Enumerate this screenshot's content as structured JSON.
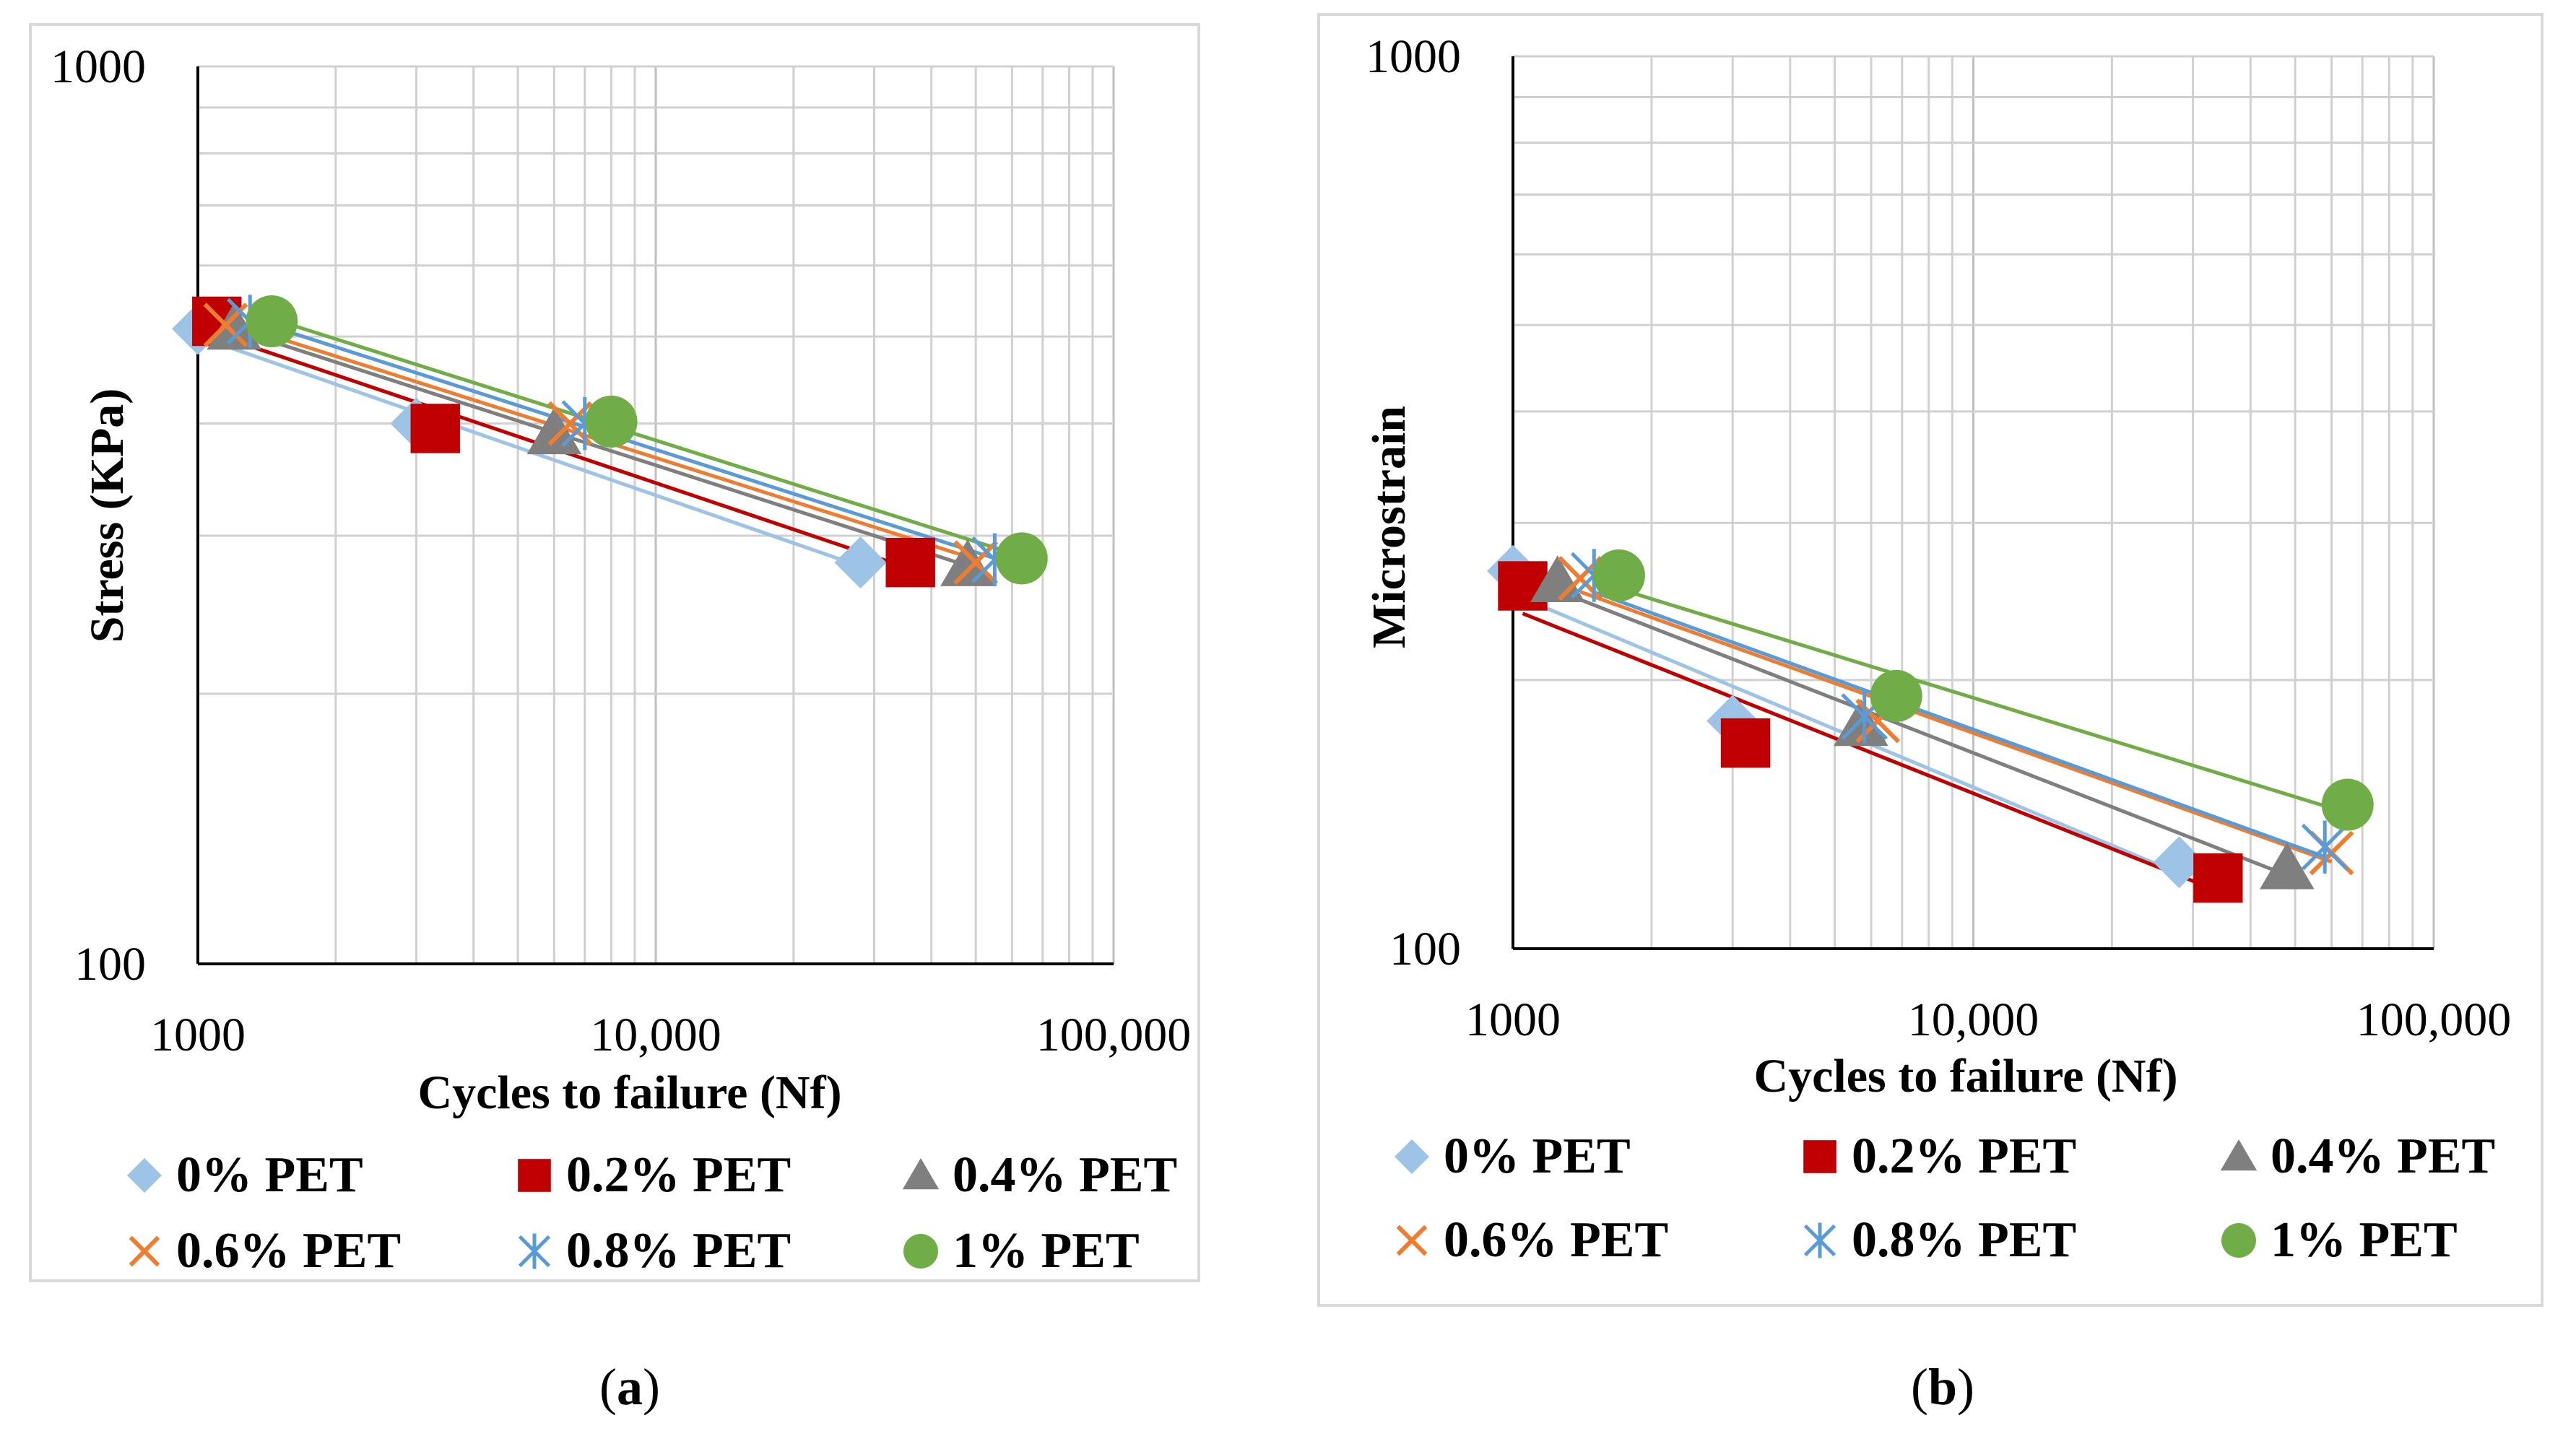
{
  "figure": {
    "series_colors": {
      "0% PET": "#9dc3e6",
      "0.2% PET": "#c00000",
      "0.4% PET": "#7f7f7f",
      "0.6% PET": "#ed7d31",
      "0.8% PET": "#5b9bd5",
      "1% PET": "#70ad47"
    },
    "marker_shapes": {
      "0% PET": "diamond",
      "0.2% PET": "square",
      "0.4% PET": "triangle",
      "0.6% PET": "x",
      "0.8% PET": "star",
      "1% PET": "circle"
    }
  },
  "chart_data": [
    {
      "id": "a",
      "type": "scatter",
      "caption": {
        "open": "(",
        "letter": "a",
        "close": ")"
      },
      "xlabel": "Cycles to failure (Nf)",
      "ylabel": "Stress (KPa)",
      "x_scale": "log",
      "y_scale": "log",
      "xlim": [
        1000,
        100000
      ],
      "ylim": [
        100,
        1000
      ],
      "x_ticks": [
        {
          "value": 1000,
          "label": "1000"
        },
        {
          "value": 10000,
          "label": "10,000"
        },
        {
          "value": 100000,
          "label": "100,000"
        }
      ],
      "y_ticks": [
        {
          "value": 1000,
          "label": "1000"
        },
        {
          "value": 100,
          "label": "100"
        }
      ],
      "grid": true,
      "trendlines": true,
      "legend_position": "bottom",
      "series": [
        {
          "name": "0% PET",
          "x": [
            1000,
            3000,
            28000
          ],
          "y": [
            510,
            400,
            280
          ]
        },
        {
          "name": "0.2% PET",
          "x": [
            1100,
            3300,
            36000
          ],
          "y": [
            520,
            395,
            280
          ]
        },
        {
          "name": "0.4% PET",
          "x": [
            1200,
            6000,
            48000
          ],
          "y": [
            510,
            390,
            278
          ]
        },
        {
          "name": "0.6% PET",
          "x": [
            1150,
            6500,
            50000
          ],
          "y": [
            515,
            400,
            280
          ]
        },
        {
          "name": "0.8% PET",
          "x": [
            1300,
            7000,
            55000
          ],
          "y": [
            520,
            400,
            282
          ]
        },
        {
          "name": "1% PET",
          "x": [
            1450,
            8000,
            63000
          ],
          "y": [
            520,
            402,
            283
          ]
        }
      ]
    },
    {
      "id": "b",
      "type": "scatter",
      "caption": {
        "open": "(",
        "letter": "b",
        "close": ")"
      },
      "xlabel": "Cycles to failure (Nf)",
      "ylabel": "Microstrain",
      "x_scale": "log",
      "y_scale": "log",
      "xlim": [
        1000,
        100000
      ],
      "ylim": [
        100,
        1000
      ],
      "x_ticks": [
        {
          "value": 1000,
          "label": "1000"
        },
        {
          "value": 10000,
          "label": "10,000"
        },
        {
          "value": 100000,
          "label": "100,000"
        }
      ],
      "y_ticks": [
        {
          "value": 1000,
          "label": "1000"
        },
        {
          "value": 100,
          "label": "100"
        }
      ],
      "grid": true,
      "trendlines": true,
      "legend_position": "bottom",
      "series": [
        {
          "name": "0% PET",
          "x": [
            1000,
            3000,
            28000
          ],
          "y": [
            265,
            180,
            125
          ]
        },
        {
          "name": "0.2% PET",
          "x": [
            1050,
            3200,
            34000
          ],
          "y": [
            255,
            170,
            120
          ]
        },
        {
          "name": "0.4% PET",
          "x": [
            1250,
            5700,
            48000
          ],
          "y": [
            258,
            178,
            123
          ]
        },
        {
          "name": "0.6% PET",
          "x": [
            1400,
            6200,
            60000
          ],
          "y": [
            260,
            180,
            128
          ]
        },
        {
          "name": "0.8% PET",
          "x": [
            1500,
            5800,
            58000
          ],
          "y": [
            262,
            182,
            130
          ]
        },
        {
          "name": "1% PET",
          "x": [
            1700,
            6800,
            65000
          ],
          "y": [
            262,
            192,
            145
          ]
        }
      ]
    }
  ]
}
